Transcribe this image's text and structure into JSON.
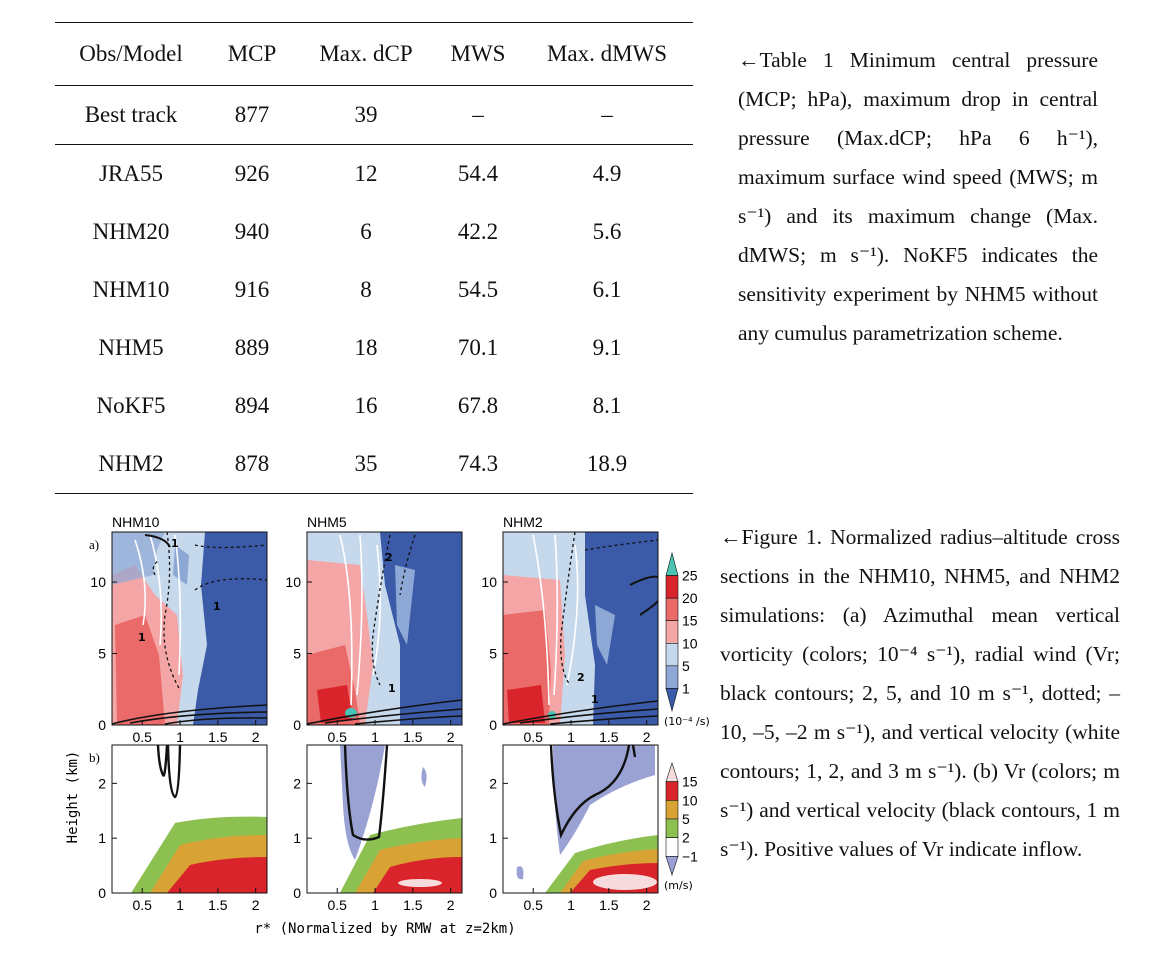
{
  "table": {
    "headers": [
      "Obs/Model",
      "MCP",
      "Max. dCP",
      "MWS",
      "Max. dMWS"
    ],
    "rows": [
      [
        "Best track",
        "877",
        "39",
        "–",
        "–"
      ],
      [
        "JRA55",
        "926",
        "12",
        "54.4",
        "4.9"
      ],
      [
        "NHM20",
        "940",
        "6",
        "42.2",
        "5.6"
      ],
      [
        "NHM10",
        "916",
        "8",
        "54.5",
        "6.1"
      ],
      [
        "NHM5",
        "889",
        "18",
        "70.1",
        "9.1"
      ],
      [
        "NoKF5",
        "894",
        "16",
        "67.8",
        "8.1"
      ],
      [
        "NHM2",
        "878",
        "35",
        "74.3",
        "18.9"
      ]
    ]
  },
  "caption1": {
    "text": "←Table 1 Minimum central pressure (MCP; hPa), maximum drop in central pressure (Max.dCP; hPa 6 h⁻¹), maximum surface wind speed (MWS; m s⁻¹) and its maximum change (Max. dMWS; m s⁻¹). NoKF5 indicates the sensitivity experiment by NHM5 without any cumulus parametrization scheme."
  },
  "caption2": {
    "text": "←Figure 1. Normalized radius–altitude cross sections in the NHM10, NHM5, and NHM2 simulations: (a) Azimuthal mean vertical vorticity (colors; 10⁻⁴ s⁻¹), radial wind (Vr; black contours; 2, 5, and 10 m s⁻¹, dotted; –10, –5, –2 m s⁻¹), and vertical velocity (white contours; 1, 2, and 3 m s⁻¹). (b) Vr (colors; m s⁻¹) and vertical velocity (black contours, 1 m s⁻¹). Positive values of Vr indicate inflow."
  },
  "figure": {
    "panel_titles": [
      "NHM10",
      "NHM5",
      "NHM2"
    ],
    "panel_a_label": "a)",
    "panel_b_label": "b)",
    "ylabel": "Height (km)",
    "xlabel": "r* (Normalized by RMW at z=2km)",
    "a_yticks": [
      "0",
      "5",
      "10"
    ],
    "b_yticks": [
      "0",
      "1",
      "2"
    ],
    "xticks": [
      "0.5",
      "1",
      "1.5",
      "2"
    ],
    "contour_labels": [
      "1",
      "1",
      "1",
      "2",
      "1",
      "2",
      "1"
    ],
    "colorbar_a": {
      "ticks": [
        "25",
        "20",
        "15",
        "10",
        "5",
        "1"
      ],
      "unit": "(10⁻⁴ /s)",
      "colors": [
        "#49c4b4",
        "#d8242a",
        "#ea6969",
        "#f4a6a6",
        "#c6d8ec",
        "#8ea8d6",
        "#3b5aa8"
      ]
    },
    "colorbar_b": {
      "ticks": [
        "15",
        "10",
        "5",
        "2",
        "−1"
      ],
      "unit": "(m/s)",
      "colors": [
        "#f6dcdc",
        "#d8242a",
        "#d9a234",
        "#8cc152",
        "#ffffff",
        "#9aa2d4"
      ]
    }
  }
}
